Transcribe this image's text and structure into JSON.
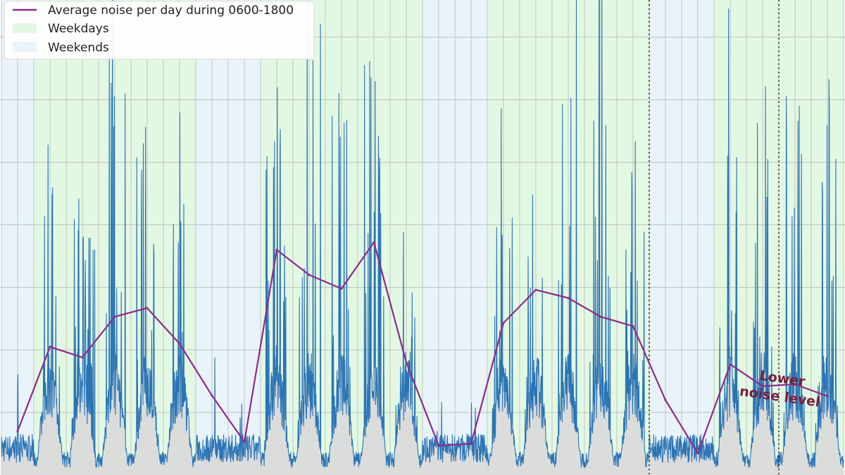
{
  "chart_data": {
    "type": "line",
    "title": "",
    "xlabel": "",
    "ylabel": "",
    "x_unit": "day",
    "xlim": [
      0,
      26
    ],
    "ylim": [
      0,
      8
    ],
    "grid": true,
    "legend_position": "top-left",
    "colors": {
      "weekday_band": "#e3f8e3",
      "weekend_band": "#e8f3fa",
      "noise_line": "#2a74b5",
      "noise_fill": "#d9d9d9",
      "average_line": "#8e2a8c",
      "annotation": "#7a1f3d",
      "grid": "#b4b4b4"
    },
    "bands": [
      {
        "type": "weekend",
        "start": 0,
        "end": 1
      },
      {
        "type": "weekday",
        "start": 1,
        "end": 6
      },
      {
        "type": "weekend",
        "start": 6,
        "end": 8
      },
      {
        "type": "weekday",
        "start": 8,
        "end": 13
      },
      {
        "type": "weekend",
        "start": 13,
        "end": 15
      },
      {
        "type": "weekday",
        "start": 15,
        "end": 20
      },
      {
        "type": "weekend",
        "start": 20,
        "end": 22
      },
      {
        "type": "weekday",
        "start": 22,
        "end": 26
      }
    ],
    "vertical_markers": [
      20,
      24
    ],
    "legend": [
      {
        "key": "average",
        "label": "Average noise per day during 0600-1800"
      },
      {
        "key": "weekday",
        "label": "Weekdays"
      },
      {
        "key": "weekend",
        "label": "Weekends"
      }
    ],
    "average_series": {
      "name": "Average noise per day during 0600-1800",
      "x": [
        0.5,
        1.5,
        2.5,
        3.5,
        4.5,
        5.5,
        6.5,
        7.5,
        8.5,
        9.5,
        10.5,
        11.5,
        12.5,
        13.5,
        14.5,
        15.5,
        16.5,
        17.5,
        18.5,
        19.5,
        20.5,
        21.5,
        22.5,
        23.5,
        24.5,
        25.5
      ],
      "y": [
        0.7,
        2.05,
        1.88,
        2.53,
        2.67,
        2.1,
        1.27,
        0.53,
        3.6,
        3.2,
        2.98,
        3.72,
        1.8,
        0.47,
        0.5,
        2.43,
        2.96,
        2.83,
        2.53,
        2.38,
        1.2,
        0.35,
        1.77,
        1.42,
        1.45,
        1.26
      ]
    },
    "noise_daily_peaks": [
      {
        "day": 0,
        "peak": 1.1
      },
      {
        "day": 1,
        "peak": 4.6
      },
      {
        "day": 2,
        "peak": 4.2
      },
      {
        "day": 3,
        "peak": 7.0
      },
      {
        "day": 4,
        "peak": 5.1
      },
      {
        "day": 5,
        "peak": 4.3
      },
      {
        "day": 6,
        "peak": 1.7
      },
      {
        "day": 7,
        "peak": 0.9
      },
      {
        "day": 8,
        "peak": 5.7
      },
      {
        "day": 9,
        "peak": 7.6
      },
      {
        "day": 10,
        "peak": 5.8
      },
      {
        "day": 11,
        "peak": 6.6
      },
      {
        "day": 12,
        "peak": 3.0
      },
      {
        "day": 13,
        "peak": 0.7
      },
      {
        "day": 14,
        "peak": 0.9
      },
      {
        "day": 15,
        "peak": 4.5
      },
      {
        "day": 16,
        "peak": 6.0
      },
      {
        "day": 17,
        "peak": 8.0
      },
      {
        "day": 18,
        "peak": 7.4
      },
      {
        "day": 19,
        "peak": 4.3
      },
      {
        "day": 20,
        "peak": 2.8
      },
      {
        "day": 21,
        "peak": 0.6
      },
      {
        "day": 22,
        "peak": 7.5
      },
      {
        "day": 23,
        "peak": 5.8
      },
      {
        "day": 24,
        "peak": 6.1
      },
      {
        "day": 25,
        "peak": 5.4
      }
    ],
    "annotations": [
      {
        "line1": "Lower",
        "line2": "noise level"
      }
    ]
  }
}
